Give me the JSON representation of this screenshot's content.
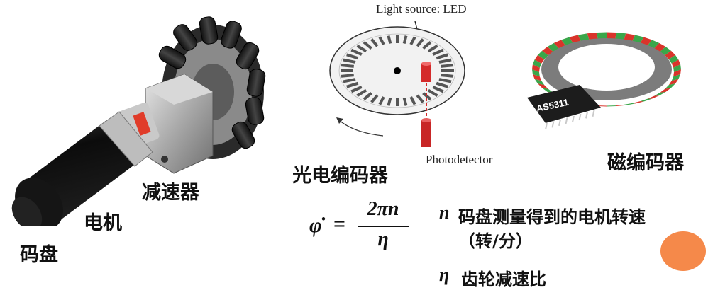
{
  "labels": {
    "encoder_disk": "码盘",
    "motor": "电机",
    "reducer": "减速器",
    "optical_encoder": "光电编码器",
    "magnetic_encoder": "磁编码器",
    "light_source": "Light source: LED",
    "photodetector": "Photodetector",
    "chip_marking": "AS5311"
  },
  "formula": {
    "lhs": "φ̇",
    "equals": "=",
    "numerator": "2πn",
    "denominator": "η"
  },
  "legend": {
    "n_symbol": "n",
    "n_text_line1": "码盘测量得到的电机转速",
    "n_text_line2": "（转/分）",
    "eta_symbol": "η",
    "eta_text": "齿轮减速比"
  },
  "colors": {
    "accent_circle": "#f5894a",
    "led_red": "#d42a2a",
    "magnet_red": "#d9342b",
    "magnet_green": "#3aa64a"
  },
  "icons": {
    "motor_assembly": "motor-with-omniwheel",
    "optical_disk": "slotted-encoder-disk",
    "magnetic_ring": "magnetic-ring-chip"
  }
}
